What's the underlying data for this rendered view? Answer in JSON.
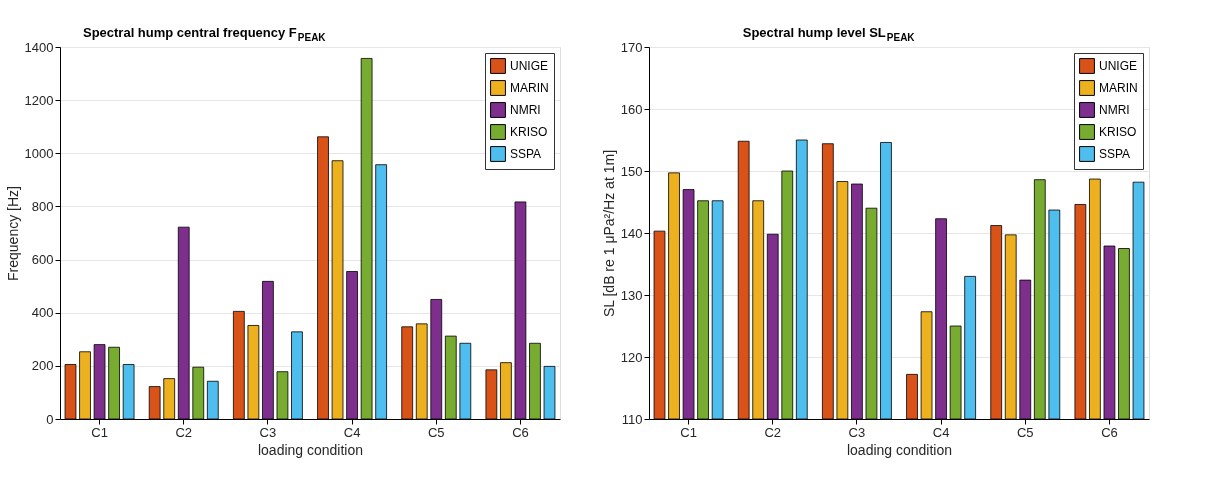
{
  "chart_data": [
    {
      "type": "bar",
      "title": "Spectral hump central frequency F$_{PEAK}$",
      "xlabel": "loading condition",
      "ylabel": "Frequency [Hz]",
      "categories": [
        "C1",
        "C2",
        "C3",
        "C4",
        "C5",
        "C6"
      ],
      "ylim": [
        0,
        1400
      ],
      "yticks": [
        0,
        200,
        400,
        600,
        800,
        1000,
        1200,
        1400
      ],
      "grid": "y",
      "legend": "top right",
      "series": [
        {
          "name": "UNIGE",
          "color": "#d95319",
          "values": [
            205,
            122,
            405,
            1062,
            347,
            185
          ]
        },
        {
          "name": "MARIN",
          "color": "#edb120",
          "values": [
            253,
            152,
            352,
            972,
            358,
            212
          ]
        },
        {
          "name": "NMRI",
          "color": "#7e2f8e",
          "values": [
            280,
            722,
            518,
            555,
            450,
            817
          ]
        },
        {
          "name": "KRISO",
          "color": "#77ac30",
          "values": [
            270,
            195,
            178,
            1357,
            312,
            285
          ]
        },
        {
          "name": "SSPA",
          "color": "#4dbeee",
          "values": [
            205,
            142,
            328,
            957,
            285,
            198
          ]
        }
      ]
    },
    {
      "type": "bar",
      "title": "Spectral hump level SL$_{PEAK}$",
      "xlabel": "loading condition",
      "ylabel": "SL [dB re 1 μPa²/Hz at 1m]",
      "categories": [
        "C1",
        "C2",
        "C3",
        "C4",
        "C5",
        "C6"
      ],
      "ylim": [
        110,
        170
      ],
      "yticks": [
        110,
        120,
        130,
        140,
        150,
        160,
        170
      ],
      "grid": "y",
      "legend": "top right",
      "series": [
        {
          "name": "UNIGE",
          "color": "#d95319",
          "values": [
            140.3,
            154.8,
            154.4,
            117.2,
            141.2,
            144.6
          ]
        },
        {
          "name": "MARIN",
          "color": "#edb120",
          "values": [
            149.7,
            145.2,
            148.3,
            127.3,
            139.7,
            148.7
          ]
        },
        {
          "name": "NMRI",
          "color": "#7e2f8e",
          "values": [
            147.0,
            139.8,
            147.9,
            142.3,
            132.4,
            137.9
          ]
        },
        {
          "name": "KRISO",
          "color": "#77ac30",
          "values": [
            145.2,
            150.0,
            144.0,
            125.0,
            148.6,
            137.5
          ]
        },
        {
          "name": "SSPA",
          "color": "#4dbeee",
          "values": [
            145.2,
            155.0,
            154.6,
            133.0,
            143.7,
            148.2
          ]
        }
      ]
    }
  ]
}
